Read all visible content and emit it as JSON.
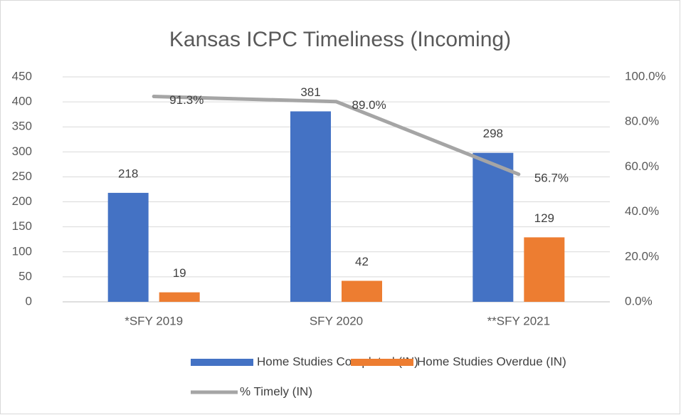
{
  "chart_data": {
    "type": "bar-line",
    "title": "Kansas ICPC Timeliness (Incoming)",
    "categories": [
      "*SFY 2019",
      "SFY 2020",
      "**SFY 2021"
    ],
    "series": [
      {
        "name": "Home Studies Completed (IN)",
        "color": "#4472c4",
        "type": "bar",
        "values": [
          218,
          381,
          298
        ]
      },
      {
        "name": "Home Studies Overdue (IN)",
        "color": "#ed7d31",
        "type": "bar",
        "values": [
          19,
          42,
          129
        ]
      },
      {
        "name": "% Timely (IN)",
        "color": "#a5a5a5",
        "type": "line",
        "axis": "y2",
        "values": [
          91.3,
          89.0,
          56.7
        ],
        "value_labels": [
          "91.3%",
          "89.0%",
          "56.7%"
        ]
      }
    ],
    "ylim": [
      0,
      450
    ],
    "yticks": [
      0,
      50,
      100,
      150,
      200,
      250,
      300,
      350,
      400,
      450
    ],
    "y2lim": [
      0,
      100
    ],
    "y2ticks": [
      {
        "value": 0,
        "label": "0.0%"
      },
      {
        "value": 20,
        "label": "20.0%"
      },
      {
        "value": 40,
        "label": "40.0%"
      },
      {
        "value": 60,
        "label": "60.0%"
      },
      {
        "value": 80,
        "label": "80.0%"
      },
      {
        "value": 100,
        "label": "100.0%"
      }
    ],
    "grid": true,
    "legend": "bottom"
  }
}
